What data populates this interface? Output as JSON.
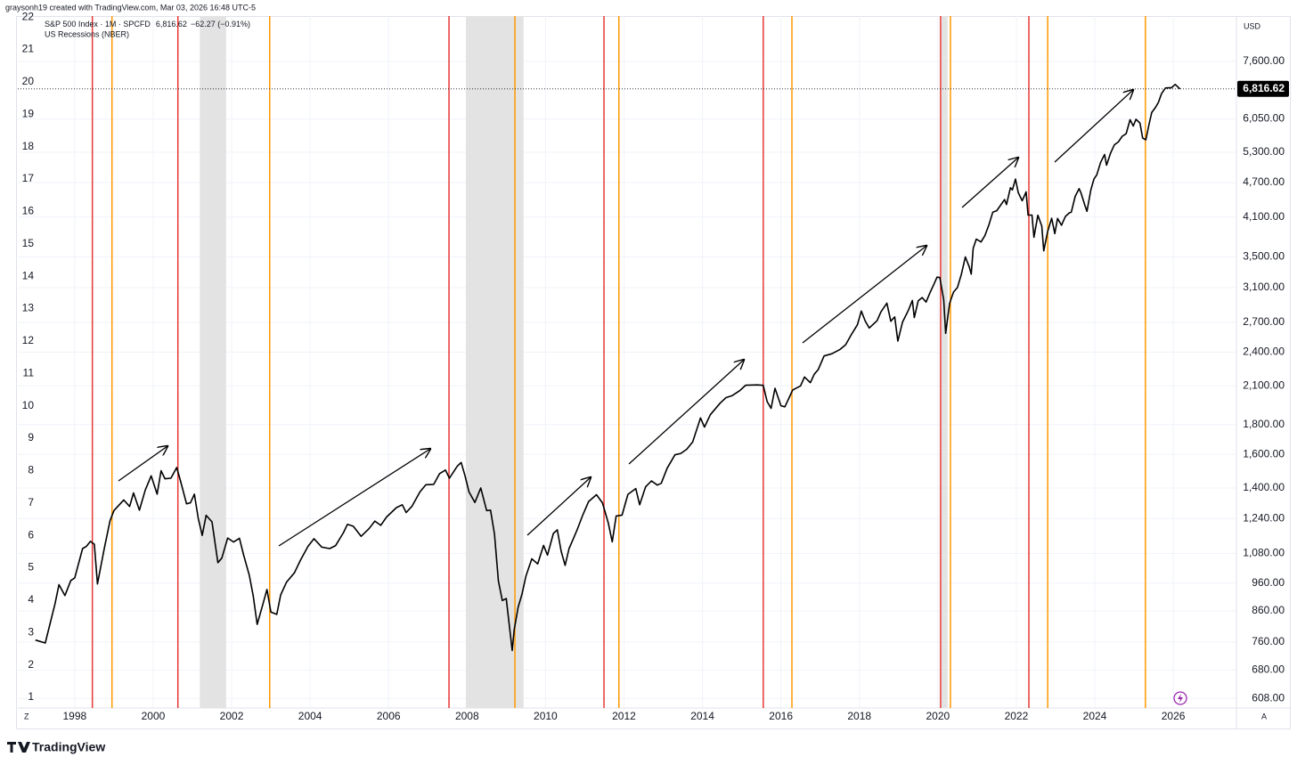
{
  "attribution": "graysonh19 created with TradingView.com, Mar 03, 2026 16:48 UTC-5",
  "brand": "TradingView",
  "currency": "USD",
  "chart_data": {
    "type": "line",
    "series": [
      {
        "name": "S&P 500 Index · 1M · SPCFD",
        "color": "#000000",
        "x": [
          1997.0,
          1997.25,
          1997.5,
          1997.6,
          1997.75,
          1997.9,
          1998.0,
          1998.2,
          1998.3,
          1998.4,
          1998.5,
          1998.58,
          1998.75,
          1998.9,
          1999.0,
          1999.25,
          1999.4,
          1999.5,
          1999.65,
          1999.8,
          1999.95,
          2000.1,
          2000.2,
          2000.3,
          2000.45,
          2000.6,
          2000.7,
          2000.85,
          2000.95,
          2001.05,
          2001.15,
          2001.25,
          2001.35,
          2001.5,
          2001.65,
          2001.75,
          2001.9,
          2002.05,
          2002.2,
          2002.3,
          2002.45,
          2002.55,
          2002.65,
          2002.8,
          2002.9,
          2003.0,
          2003.15,
          2003.25,
          2003.4,
          2003.6,
          2003.75,
          2003.95,
          2004.1,
          2004.3,
          2004.5,
          2004.65,
          2004.85,
          2004.95,
          2005.1,
          2005.3,
          2005.5,
          2005.65,
          2005.8,
          2005.95,
          2006.2,
          2006.35,
          2006.45,
          2006.6,
          2006.8,
          2006.95,
          2007.15,
          2007.3,
          2007.45,
          2007.55,
          2007.75,
          2007.85,
          2007.95,
          2008.05,
          2008.2,
          2008.35,
          2008.5,
          2008.6,
          2008.7,
          2008.8,
          2008.9,
          2009.0,
          2009.15,
          2009.2,
          2009.3,
          2009.4,
          2009.5,
          2009.65,
          2009.8,
          2009.95,
          2010.05,
          2010.2,
          2010.3,
          2010.4,
          2010.5,
          2010.6,
          2010.7,
          2010.8,
          2010.95,
          2011.1,
          2011.3,
          2011.45,
          2011.6,
          2011.7,
          2011.8,
          2011.95,
          2012.1,
          2012.3,
          2012.4,
          2012.55,
          2012.7,
          2012.85,
          2012.95,
          2013.1,
          2013.3,
          2013.45,
          2013.6,
          2013.75,
          2013.95,
          2014.05,
          2014.2,
          2014.45,
          2014.6,
          2014.75,
          2014.95,
          2015.1,
          2015.4,
          2015.55,
          2015.65,
          2015.75,
          2015.85,
          2016.0,
          2016.1,
          2016.3,
          2016.5,
          2016.6,
          2016.75,
          2016.85,
          2016.95,
          2017.1,
          2017.3,
          2017.5,
          2017.65,
          2017.8,
          2017.95,
          2018.05,
          2018.15,
          2018.25,
          2018.45,
          2018.55,
          2018.7,
          2018.8,
          2018.9,
          2018.98,
          2019.1,
          2019.25,
          2019.35,
          2019.4,
          2019.5,
          2019.6,
          2019.7,
          2019.8,
          2019.9,
          2019.98,
          2020.05,
          2020.15,
          2020.2,
          2020.3,
          2020.4,
          2020.5,
          2020.6,
          2020.7,
          2020.8,
          2020.85,
          2020.9,
          2020.98,
          2021.1,
          2021.2,
          2021.3,
          2021.4,
          2021.5,
          2021.6,
          2021.7,
          2021.75,
          2021.85,
          2021.9,
          2021.98,
          2022.05,
          2022.15,
          2022.25,
          2022.3,
          2022.4,
          2022.45,
          2022.55,
          2022.65,
          2022.7,
          2022.8,
          2022.9,
          2022.98,
          2023.05,
          2023.15,
          2023.25,
          2023.35,
          2023.4,
          2023.5,
          2023.6,
          2023.65,
          2023.75,
          2023.8,
          2023.9,
          2023.98,
          2024.05,
          2024.15,
          2024.25,
          2024.3,
          2024.4,
          2024.5,
          2024.6,
          2024.7,
          2024.8,
          2024.9,
          2024.98,
          2025.05,
          2025.15,
          2025.22,
          2025.3,
          2025.38,
          2025.45,
          2025.55,
          2025.62,
          2025.7,
          2025.8,
          2025.88,
          2025.95,
          2026.05,
          2026.17
        ],
        "values": [
          766,
          757,
          885,
          954,
          914,
          970,
          980,
          1101,
          1111,
          1133,
          1120,
          957,
          1098,
          1229,
          1280,
          1335,
          1301,
          1373,
          1282,
          1389,
          1469,
          1366,
          1499,
          1452,
          1455,
          1518,
          1437,
          1315,
          1320,
          1366,
          1240,
          1160,
          1256,
          1224,
          1041,
          1060,
          1148,
          1130,
          1147,
          1076,
          990,
          912,
          815,
          885,
          936,
          856,
          848,
          916,
          964,
          1000,
          1050,
          1112,
          1145,
          1107,
          1101,
          1114,
          1173,
          1212,
          1203,
          1156,
          1191,
          1228,
          1207,
          1248,
          1295,
          1310,
          1270,
          1303,
          1378,
          1418,
          1420,
          1482,
          1503,
          1455,
          1526,
          1549,
          1468,
          1378,
          1322,
          1400,
          1280,
          1282,
          1166,
          968,
          896,
          903,
          735,
          797,
          872,
          919,
          987,
          1057,
          1036,
          1115,
          1073,
          1169,
          1186,
          1089,
          1030,
          1101,
          1141,
          1183,
          1257,
          1327,
          1363,
          1320,
          1218,
          1131,
          1253,
          1257,
          1365,
          1397,
          1310,
          1406,
          1440,
          1416,
          1426,
          1514,
          1597,
          1606,
          1632,
          1681,
          1848,
          1782,
          1872,
          1960,
          2003,
          2018,
          2059,
          2104,
          2107,
          2103,
          1972,
          1920,
          2079,
          1940,
          1932,
          2065,
          2099,
          2174,
          2126,
          2198,
          2239,
          2363,
          2384,
          2423,
          2471,
          2575,
          2674,
          2824,
          2714,
          2641,
          2718,
          2816,
          2914,
          2712,
          2760,
          2507,
          2704,
          2834,
          2945,
          2752,
          2942,
          2980,
          2926,
          3037,
          3141,
          3231,
          3226,
          2954,
          2585,
          2912,
          3044,
          3100,
          3271,
          3500,
          3363,
          3270,
          3622,
          3756,
          3714,
          3811,
          3973,
          4181,
          4204,
          4297,
          4395,
          4308,
          4605,
          4567,
          4766,
          4516,
          4374,
          4530,
          4132,
          4132,
          3785,
          4130,
          3955,
          3586,
          3872,
          4080,
          3840,
          4077,
          3970,
          4109,
          4169,
          4180,
          4450,
          4589,
          4508,
          4288,
          4194,
          4568,
          4770,
          4846,
          5096,
          5254,
          5036,
          5278,
          5460,
          5522,
          5648,
          5705,
          6032,
          5882,
          6040,
          5954,
          5612,
          5569,
          5912,
          6205,
          6339,
          6460,
          6688,
          6840,
          6849,
          6845,
          6939,
          6816.62
        ]
      }
    ],
    "last_price": {
      "value": 6816.62,
      "label": "6,816.62"
    },
    "change": "−62.27 (−0.91%)",
    "recession_name": "US Recessions (NBER)",
    "recessions": {
      "color": "#e3e3e3",
      "ranges": [
        [
          2001.19,
          2001.86
        ],
        [
          2007.97,
          2009.44
        ],
        [
          2020.09,
          2020.25
        ]
      ]
    },
    "markers": [
      {
        "color": "#e53935",
        "x": [
          1998.45,
          2000.63,
          2007.54,
          2011.49,
          2015.55,
          2020.07,
          2022.32
        ]
      },
      {
        "color": "#ff9800",
        "x": [
          1998.95,
          2002.97,
          2009.22,
          2011.87,
          2016.28,
          2020.32,
          2022.8,
          2025.29
        ]
      }
    ],
    "log_scale": true,
    "grid": true,
    "xlim": [
      1996.55,
      2027.61
    ],
    "xticks": [
      1998,
      2000,
      2002,
      2004,
      2006,
      2008,
      2010,
      2012,
      2014,
      2016,
      2018,
      2020,
      2022,
      2024,
      2026
    ],
    "ylim": [
      585,
      9100
    ],
    "yticks": [
      {
        "value": 608,
        "label": "608.00"
      },
      {
        "value": 680,
        "label": "680.00"
      },
      {
        "value": 760,
        "label": "760.00"
      },
      {
        "value": 860,
        "label": "860.00"
      },
      {
        "value": 960,
        "label": "960.00"
      },
      {
        "value": 1080,
        "label": "1,080.00"
      },
      {
        "value": 1240,
        "label": "1,240.00"
      },
      {
        "value": 1400,
        "label": "1,400.00"
      },
      {
        "value": 1600,
        "label": "1,600.00"
      },
      {
        "value": 1800,
        "label": "1,800.00"
      },
      {
        "value": 2100,
        "label": "2,100.00"
      },
      {
        "value": 2400,
        "label": "2,400.00"
      },
      {
        "value": 2700,
        "label": "2,700.00"
      },
      {
        "value": 3100,
        "label": "3,100.00"
      },
      {
        "value": 3500,
        "label": "3,500.00"
      },
      {
        "value": 4100,
        "label": "4,100.00"
      },
      {
        "value": 4700,
        "label": "4,700.00"
      },
      {
        "value": 5300,
        "label": "5,300.00"
      },
      {
        "value": 6050,
        "label": "6,050.00"
      },
      {
        "value": 7600,
        "label": "7,600.00"
      }
    ],
    "y2lim": [
      0.67,
      22.03
    ],
    "y2ticks": [
      1,
      2,
      3,
      4,
      5,
      6,
      7,
      8,
      9,
      10,
      11,
      12,
      13,
      14,
      15,
      16,
      17,
      18,
      19,
      20,
      21,
      22
    ]
  }
}
